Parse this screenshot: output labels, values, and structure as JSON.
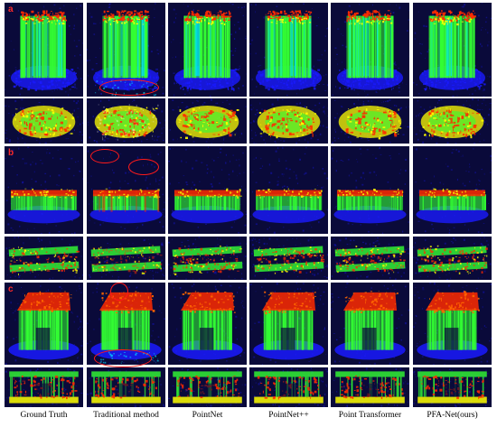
{
  "figure": {
    "panel_labels": [
      "a",
      "b",
      "c"
    ],
    "columns": [
      {
        "id": "gt",
        "label": "Ground Truth"
      },
      {
        "id": "tr",
        "label": "Traditional method"
      },
      {
        "id": "pn",
        "label": "PointNet"
      },
      {
        "id": "pnp",
        "label": "PointNet++"
      },
      {
        "id": "pt",
        "label": "Point Transformer"
      },
      {
        "id": "pfa",
        "label": "PFA-Net(ours)"
      }
    ],
    "rows": [
      {
        "panel": "a",
        "view": "side",
        "shape": "tower"
      },
      {
        "panel": "a",
        "view": "top",
        "shape": "oval"
      },
      {
        "panel": "b",
        "view": "side",
        "shape": "wall"
      },
      {
        "panel": "b",
        "view": "top",
        "shape": "strips"
      },
      {
        "panel": "c",
        "view": "side",
        "shape": "block"
      },
      {
        "panel": "c",
        "view": "top",
        "shape": "front"
      }
    ],
    "highlight_color": "#ff1a1a",
    "label_color": "#ff2a2a",
    "colormap": [
      "#1a1aff",
      "#00e0ff",
      "#33ff33",
      "#ffff00",
      "#ff2a00"
    ]
  }
}
